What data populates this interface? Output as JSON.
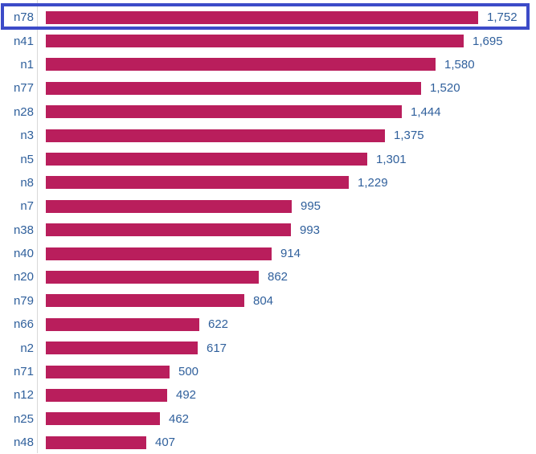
{
  "chart_data": {
    "type": "bar",
    "orientation": "horizontal",
    "title": "",
    "xlabel": "",
    "ylabel": "",
    "grid": false,
    "legend": false,
    "xlim": [
      0,
      1752
    ],
    "data_label_position": "outside-end",
    "categories": [
      "n78",
      "n41",
      "n1",
      "n77",
      "n28",
      "n3",
      "n5",
      "n8",
      "n7",
      "n38",
      "n40",
      "n20",
      "n79",
      "n66",
      "n2",
      "n71",
      "n12",
      "n25",
      "n48"
    ],
    "values": [
      1752,
      1695,
      1580,
      1520,
      1444,
      1375,
      1301,
      1229,
      995,
      993,
      914,
      862,
      804,
      622,
      617,
      500,
      492,
      462,
      407
    ],
    "value_labels": [
      "1,752",
      "1,695",
      "1,580",
      "1,520",
      "1,444",
      "1,375",
      "1,301",
      "1,229",
      "995",
      "993",
      "914",
      "862",
      "804",
      "622",
      "617",
      "500",
      "492",
      "462",
      "407"
    ],
    "bar_color": "#B91E5C",
    "label_color": "#30609C",
    "axis_line_color": "#D8D8D8"
  },
  "selection": {
    "highlighted_category": "n78",
    "highlighted_value_label": "1,752",
    "box_color": "#3C4BC8"
  }
}
